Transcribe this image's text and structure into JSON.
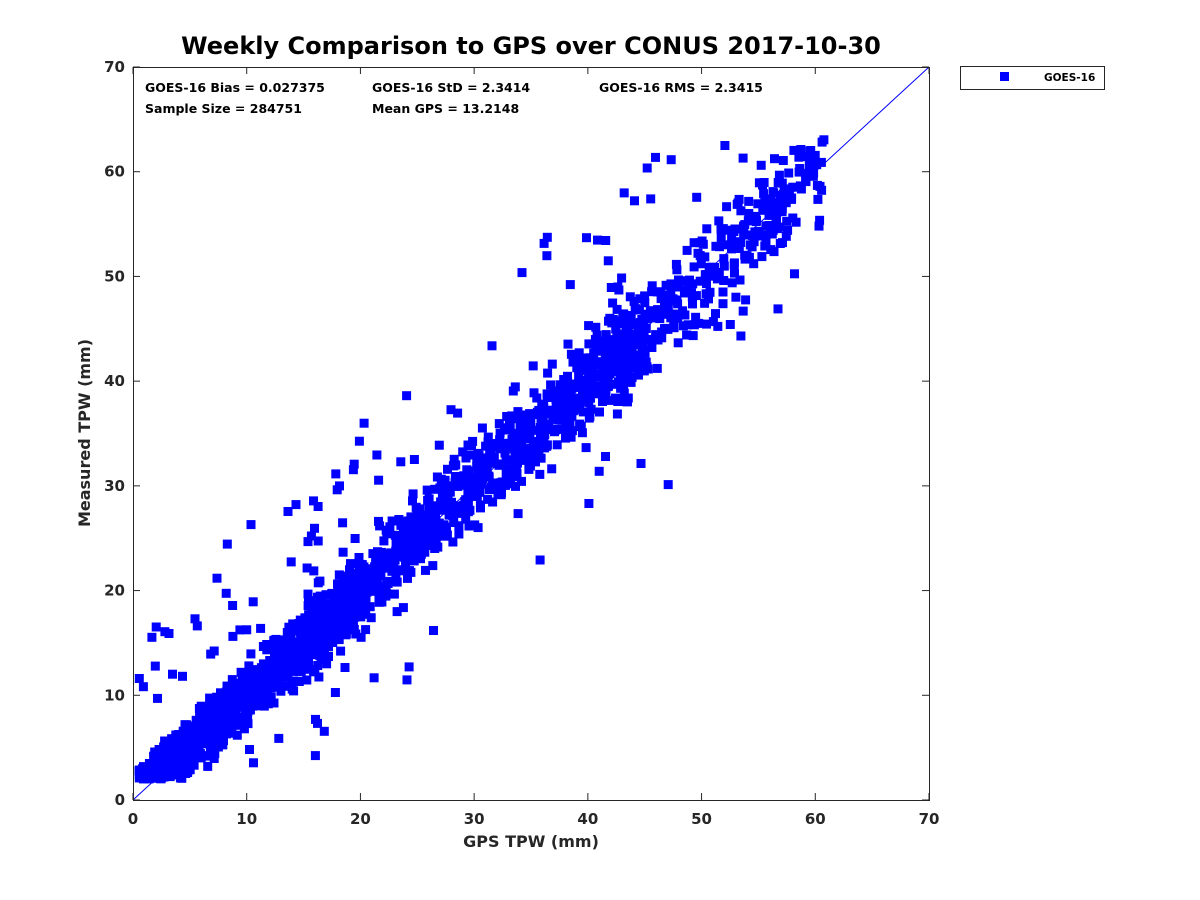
{
  "chart_data": {
    "type": "scatter",
    "title": "Weekly Comparison to GPS over CONUS 2017-10-30",
    "xlabel": "GPS TPW (mm)",
    "ylabel": "Measured TPW (mm)",
    "xlim": [
      0,
      70
    ],
    "ylim": [
      0,
      70
    ],
    "xticks": [
      "0",
      "10",
      "20",
      "30",
      "40",
      "50",
      "60",
      "70"
    ],
    "yticks": [
      "0",
      "10",
      "20",
      "30",
      "40",
      "50",
      "60",
      "70"
    ],
    "grid": false,
    "legend_position": "outside-top-right",
    "reference_line": {
      "name": "1:1",
      "x": [
        0,
        70
      ],
      "y": [
        0,
        70
      ],
      "color": "#0000ff"
    },
    "series": [
      {
        "name": "GOES-16",
        "marker": "square",
        "color": "#0000ff",
        "sample_size": 284751,
        "approx_trend": {
          "slope": 1.0,
          "intercept": 0.027,
          "std": 2.34
        },
        "x_range": [
          0.5,
          62
        ],
        "y_range": [
          2,
          65
        ]
      }
    ],
    "stats": {
      "bias": "GOES-16 Bias = 0.027375",
      "std": "GOES-16 StD = 2.3414",
      "rms": "GOES-16 RMS = 2.3415",
      "sample_size": "Sample Size = 284751",
      "mean_gps": "Mean GPS = 13.2148"
    }
  },
  "colors": {
    "marker": "#0000ff",
    "axis": "#262626"
  }
}
